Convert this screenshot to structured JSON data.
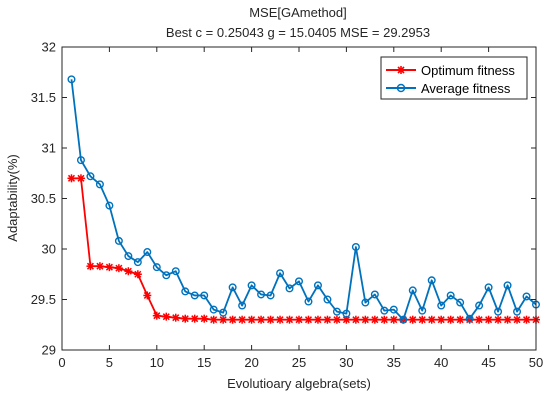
{
  "chart_data": {
    "type": "line",
    "title": "MSE[GAmethod]",
    "subtitle": "Best c = 0.25043 g = 15.0405 MSE = 29.2953",
    "xlabel": "Evolutioary algebra(sets)",
    "ylabel": "Adaptability(%)",
    "xlim": [
      0,
      50
    ],
    "ylim": [
      29,
      32
    ],
    "xticks": [
      0,
      5,
      10,
      15,
      20,
      25,
      30,
      35,
      40,
      45,
      50
    ],
    "yticks": [
      29,
      29.5,
      30,
      30.5,
      31,
      31.5,
      32
    ],
    "grid": false,
    "legend_position": "top-right",
    "x": [
      1,
      2,
      3,
      4,
      5,
      6,
      7,
      8,
      9,
      10,
      11,
      12,
      13,
      14,
      15,
      16,
      17,
      18,
      19,
      20,
      21,
      22,
      23,
      24,
      25,
      26,
      27,
      28,
      29,
      30,
      31,
      32,
      33,
      34,
      35,
      36,
      37,
      38,
      39,
      40,
      41,
      42,
      43,
      44,
      45,
      46,
      47,
      48,
      49,
      50
    ],
    "series": [
      {
        "name": "Optimum fitness",
        "color": "#ff0000",
        "marker": "asterisk",
        "values": [
          30.7,
          30.7,
          29.83,
          29.83,
          29.82,
          29.81,
          29.78,
          29.75,
          29.54,
          29.34,
          29.33,
          29.32,
          29.31,
          29.31,
          29.31,
          29.3,
          29.3,
          29.3,
          29.3,
          29.3,
          29.3,
          29.3,
          29.3,
          29.3,
          29.3,
          29.3,
          29.3,
          29.3,
          29.3,
          29.3,
          29.3,
          29.3,
          29.3,
          29.3,
          29.3,
          29.3,
          29.3,
          29.3,
          29.3,
          29.3,
          29.3,
          29.3,
          29.3,
          29.3,
          29.3,
          29.3,
          29.3,
          29.3,
          29.3,
          29.3
        ]
      },
      {
        "name": "Average fitness",
        "color": "#0072bd",
        "marker": "circle",
        "values": [
          31.68,
          30.88,
          30.72,
          30.64,
          30.43,
          30.08,
          29.93,
          29.87,
          29.97,
          29.82,
          29.74,
          29.78,
          29.58,
          29.54,
          29.54,
          29.4,
          29.37,
          29.62,
          29.44,
          29.64,
          29.55,
          29.54,
          29.76,
          29.61,
          29.68,
          29.48,
          29.64,
          29.5,
          29.38,
          29.36,
          30.02,
          29.47,
          29.55,
          29.39,
          29.4,
          29.3,
          29.59,
          29.39,
          29.69,
          29.44,
          29.54,
          29.47,
          29.31,
          29.44,
          29.62,
          29.38,
          29.64,
          29.38,
          29.53,
          29.45
        ]
      }
    ]
  }
}
